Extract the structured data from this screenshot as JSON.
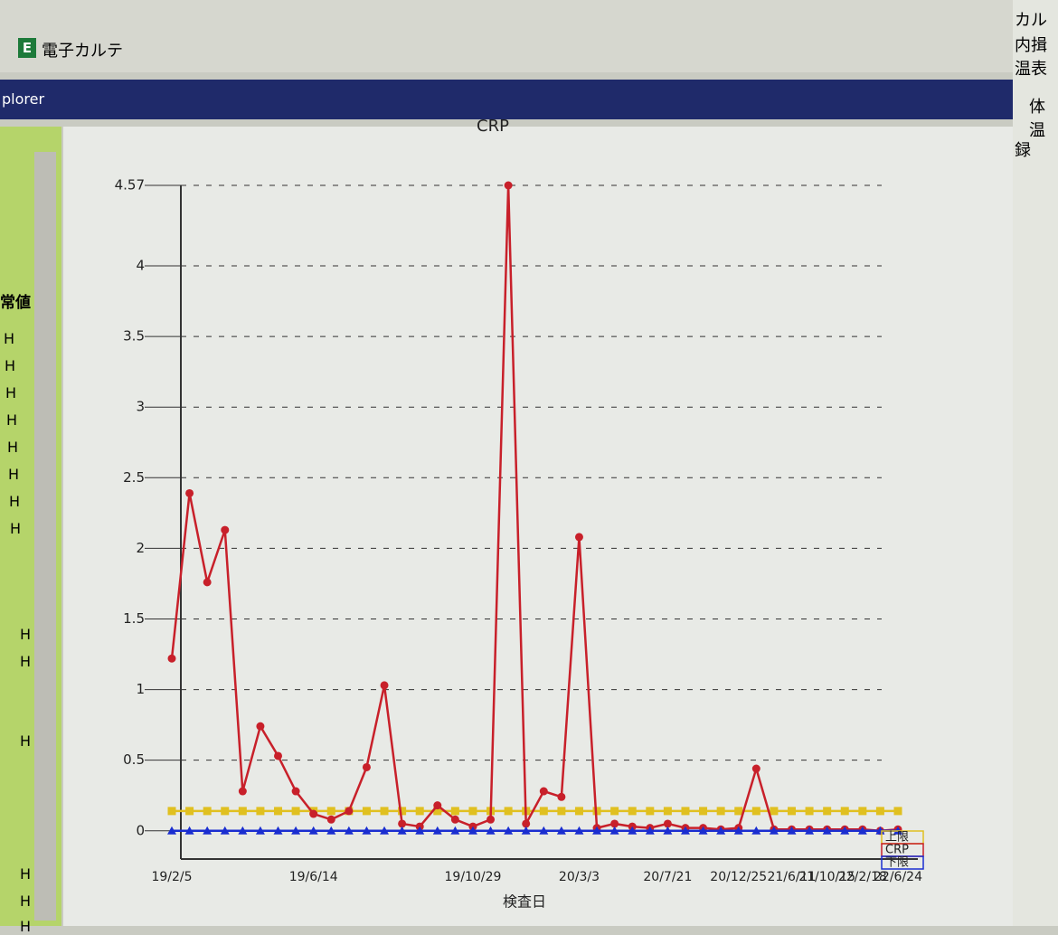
{
  "toolbar_icon": "E",
  "toolbar_link": "電子カルテ",
  "window_title": "plorer",
  "left_panel": {
    "header": "常値",
    "flags": [
      "H",
      "H",
      "H",
      "H",
      "H",
      "H",
      "H",
      "H",
      "H",
      "H",
      "H",
      "H",
      "H",
      "H"
    ]
  },
  "right_panel": {
    "items": [
      "カル",
      "内揖",
      "温表",
      "体温",
      "録"
    ]
  },
  "chart_data": {
    "type": "line",
    "title": "CRP",
    "x_label": "検査日",
    "categories": [
      "19/2/5",
      null,
      null,
      null,
      null,
      null,
      null,
      null,
      "19/6/14",
      null,
      null,
      null,
      null,
      null,
      null,
      null,
      null,
      "19/10/29",
      null,
      null,
      null,
      null,
      null,
      "20/3/3",
      null,
      null,
      null,
      null,
      "20/7/21",
      null,
      null,
      null,
      "20/12/25",
      null,
      null,
      "21/6/11",
      null,
      "21/10/15",
      null,
      "22/2/18",
      null,
      "22/6/24"
    ],
    "series": [
      {
        "name": "上限",
        "color": "#e0c020",
        "marker": "square",
        "values": [
          0.14,
          0.14,
          0.14,
          0.14,
          0.14,
          0.14,
          0.14,
          0.14,
          0.14,
          0.14,
          0.14,
          0.14,
          0.14,
          0.14,
          0.14,
          0.14,
          0.14,
          0.14,
          0.14,
          0.14,
          0.14,
          0.14,
          0.14,
          0.14,
          0.14,
          0.14,
          0.14,
          0.14,
          0.14,
          0.14,
          0.14,
          0.14,
          0.14,
          0.14,
          0.14,
          0.14,
          0.14,
          0.14,
          0.14,
          0.14,
          0.14,
          0.14
        ]
      },
      {
        "name": "CRP",
        "color": "#c8202a",
        "marker": "circle",
        "values": [
          1.22,
          2.39,
          1.76,
          2.13,
          0.28,
          0.74,
          0.53,
          0.28,
          0.12,
          0.08,
          0.14,
          0.45,
          1.03,
          0.05,
          0.03,
          0.18,
          0.08,
          0.03,
          0.08,
          4.57,
          0.05,
          0.28,
          0.24,
          2.08,
          0.02,
          0.05,
          0.03,
          0.02,
          0.05,
          0.02,
          0.02,
          0.01,
          0.02,
          0.44,
          0.01,
          0.01,
          0.01,
          0.01,
          0.01,
          0.01,
          0,
          0.01
        ]
      },
      {
        "name": "下限",
        "color": "#1a2ed0",
        "marker": "triangle",
        "values": [
          0,
          0,
          0,
          0,
          0,
          0,
          0,
          0,
          0,
          0,
          0,
          0,
          0,
          0,
          0,
          0,
          0,
          0,
          0,
          0,
          0,
          0,
          0,
          0,
          0,
          0,
          0,
          0,
          0,
          0,
          0,
          0,
          0,
          0,
          0,
          0,
          0,
          0,
          0,
          0,
          0,
          0
        ]
      }
    ],
    "ylim": [
      -0.2,
      4.57
    ],
    "yticks": [
      0,
      0.5,
      1,
      1.5,
      2,
      2.5,
      3,
      3.5,
      4,
      4.57
    ],
    "grid": true,
    "legend": "bottom-right"
  }
}
